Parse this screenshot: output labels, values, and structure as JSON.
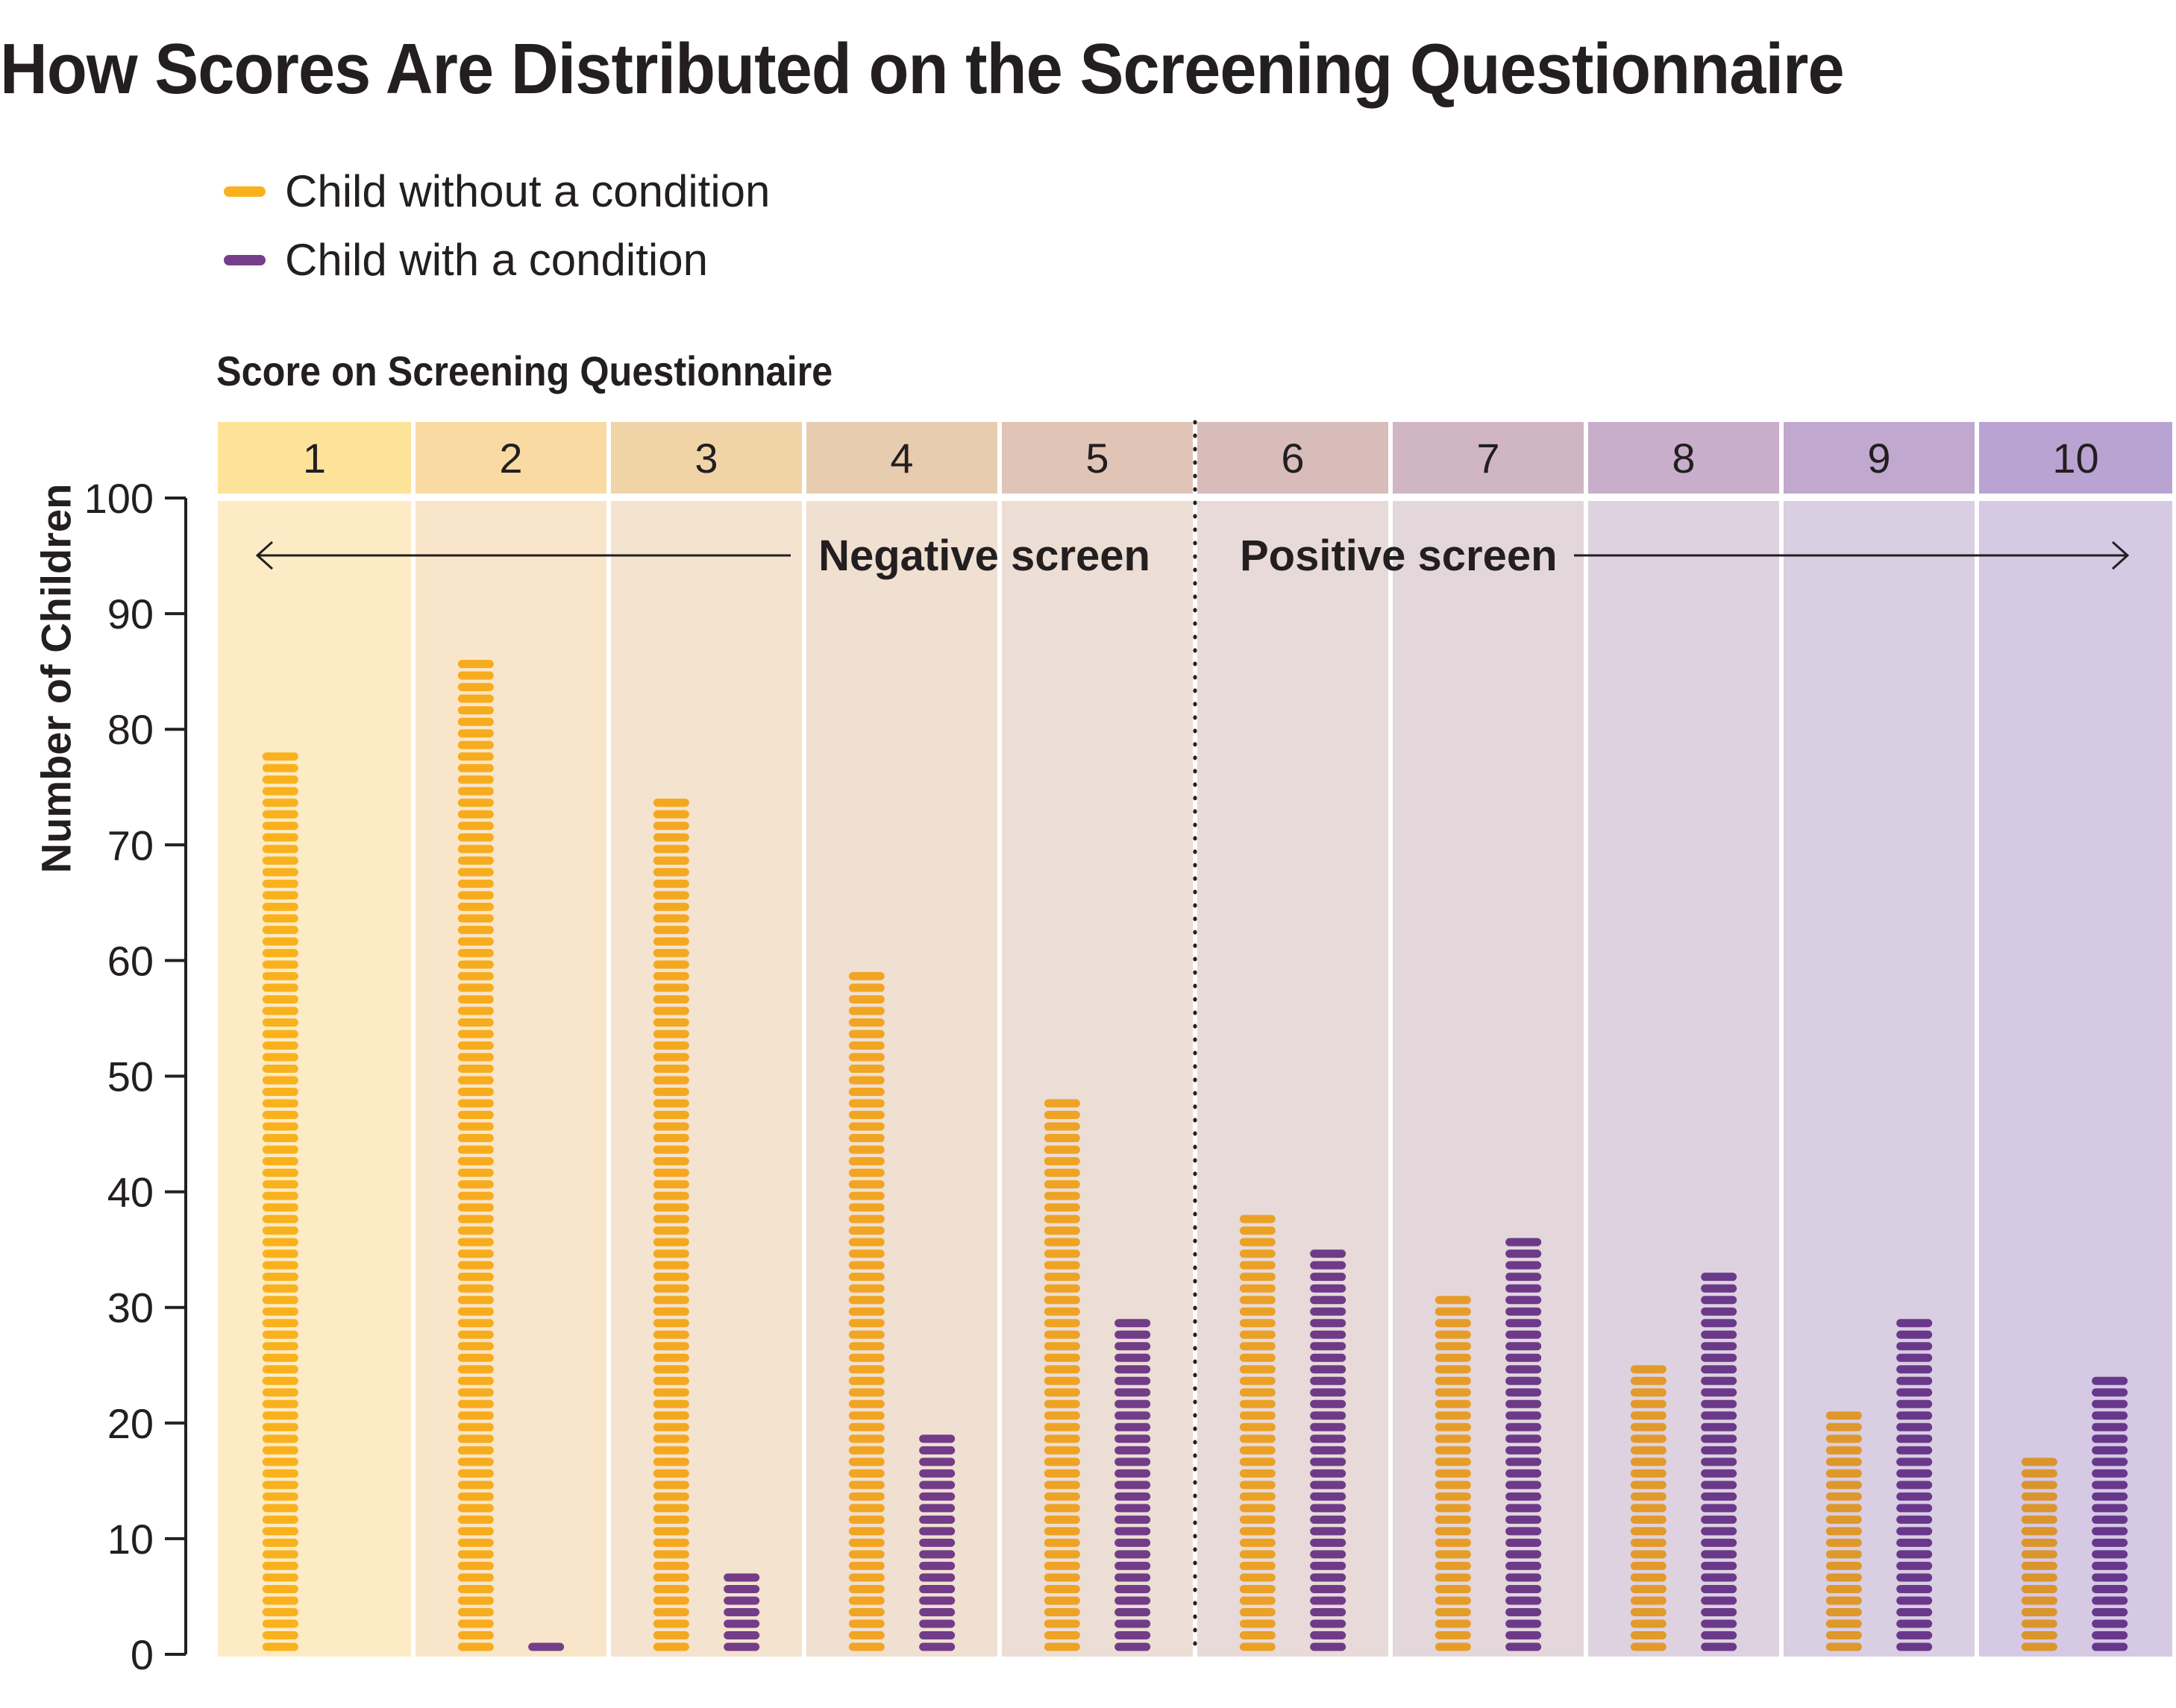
{
  "title": "How Scores Are Distributed on the Screening Questionnaire",
  "legend": [
    {
      "label": "Child without a condition",
      "color": "#F6A91C"
    },
    {
      "label": "Child with a condition",
      "color": "#743E8A"
    }
  ],
  "annotations": {
    "negative": "Negative screen",
    "positive": "Positive screen",
    "threshold_between_scores": [
      5,
      6
    ]
  },
  "chart_data": {
    "type": "bar",
    "title": "How Scores Are Distributed on the Screening Questionnaire",
    "xlabel": "Score on Screening Questionnaire",
    "ylabel": "Number of Children",
    "categories": [
      "1",
      "2",
      "3",
      "4",
      "5",
      "6",
      "7",
      "8",
      "9",
      "10"
    ],
    "series": [
      {
        "name": "Child without a condition",
        "values": [
          78,
          86,
          74,
          59,
          48,
          38,
          31,
          25,
          21,
          17
        ]
      },
      {
        "name": "Child with a condition",
        "values": [
          0,
          1,
          7,
          19,
          29,
          35,
          36,
          33,
          29,
          24
        ]
      }
    ],
    "ylim": [
      0,
      100
    ],
    "yticks": [
      0,
      10,
      20,
      30,
      40,
      50,
      60,
      70,
      80,
      90,
      100
    ],
    "grid": false,
    "legend_position": "top-left",
    "mark_style": "stacked dashes, one dash per child"
  },
  "colors": {
    "header_bg": [
      "#FDE29A",
      "#F8DAA2",
      "#F0D4A8",
      "#E8CCB0",
      "#E0C4B6",
      "#D8BCBA",
      "#D0B6C2",
      "#C8AECA",
      "#C0A8CE",
      "#B9A3D2"
    ],
    "column_bg": [
      "#FDEBC5",
      "#F9E6CA",
      "#F4E3CF",
      "#F0E0D2",
      "#ECDDD5",
      "#E8DAD8",
      "#E3D7DC",
      "#DED2E0",
      "#DACEE2",
      "#D6C9E4"
    ],
    "orange_series": [
      "#F9B21D",
      "#F7AC1E",
      "#F4A820",
      "#F1A522",
      "#EEA324",
      "#EBA126",
      "#E69D28",
      "#E29A2A",
      "#DE982B",
      "#DA952C"
    ],
    "purple_series": [
      "#743E8A",
      "#743E8A",
      "#733D89",
      "#723C88",
      "#713C88",
      "#6F3B88",
      "#6D3A89",
      "#6B398A",
      "#69388B",
      "#67378C"
    ]
  }
}
